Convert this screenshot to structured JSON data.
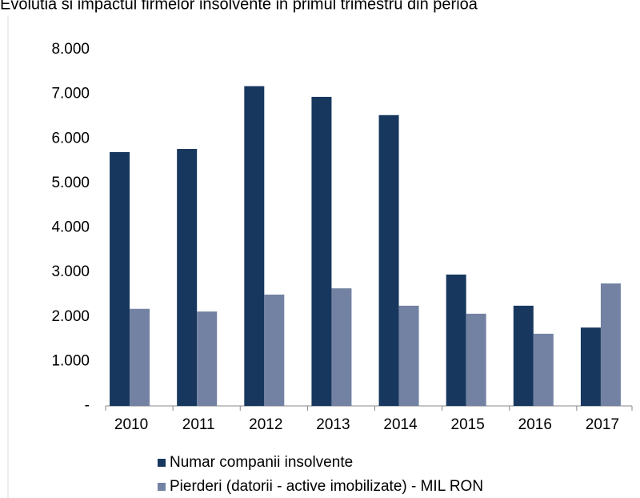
{
  "chart_data": {
    "type": "bar",
    "title": "Evolutia si impactul firmelor insolvente in primul trimestru din perioa",
    "categories": [
      "2010",
      "2011",
      "2012",
      "2013",
      "2014",
      "2015",
      "2016",
      "2017"
    ],
    "series": [
      {
        "name": "Numar companii insolvente",
        "color": "#17375e",
        "values": [
          5700,
          5770,
          7180,
          6940,
          6530,
          2950,
          2250,
          1760
        ]
      },
      {
        "name": "Pierderi (datorii - active imobilizate) - MIL RON",
        "color": "#7382a2",
        "values": [
          2180,
          2120,
          2500,
          2640,
          2250,
          2070,
          1620,
          2750
        ]
      }
    ],
    "ylim": [
      0,
      8000
    ],
    "yticks": [
      {
        "value": 0,
        "label": "-"
      },
      {
        "value": 1000,
        "label": "1.000"
      },
      {
        "value": 2000,
        "label": "2.000"
      },
      {
        "value": 3000,
        "label": "3.000"
      },
      {
        "value": 4000,
        "label": "4.000"
      },
      {
        "value": 5000,
        "label": "5.000"
      },
      {
        "value": 6000,
        "label": "6.000"
      },
      {
        "value": 7000,
        "label": "7.000"
      },
      {
        "value": 8000,
        "label": "8.000"
      }
    ],
    "grid": false,
    "legend": "bottom"
  }
}
